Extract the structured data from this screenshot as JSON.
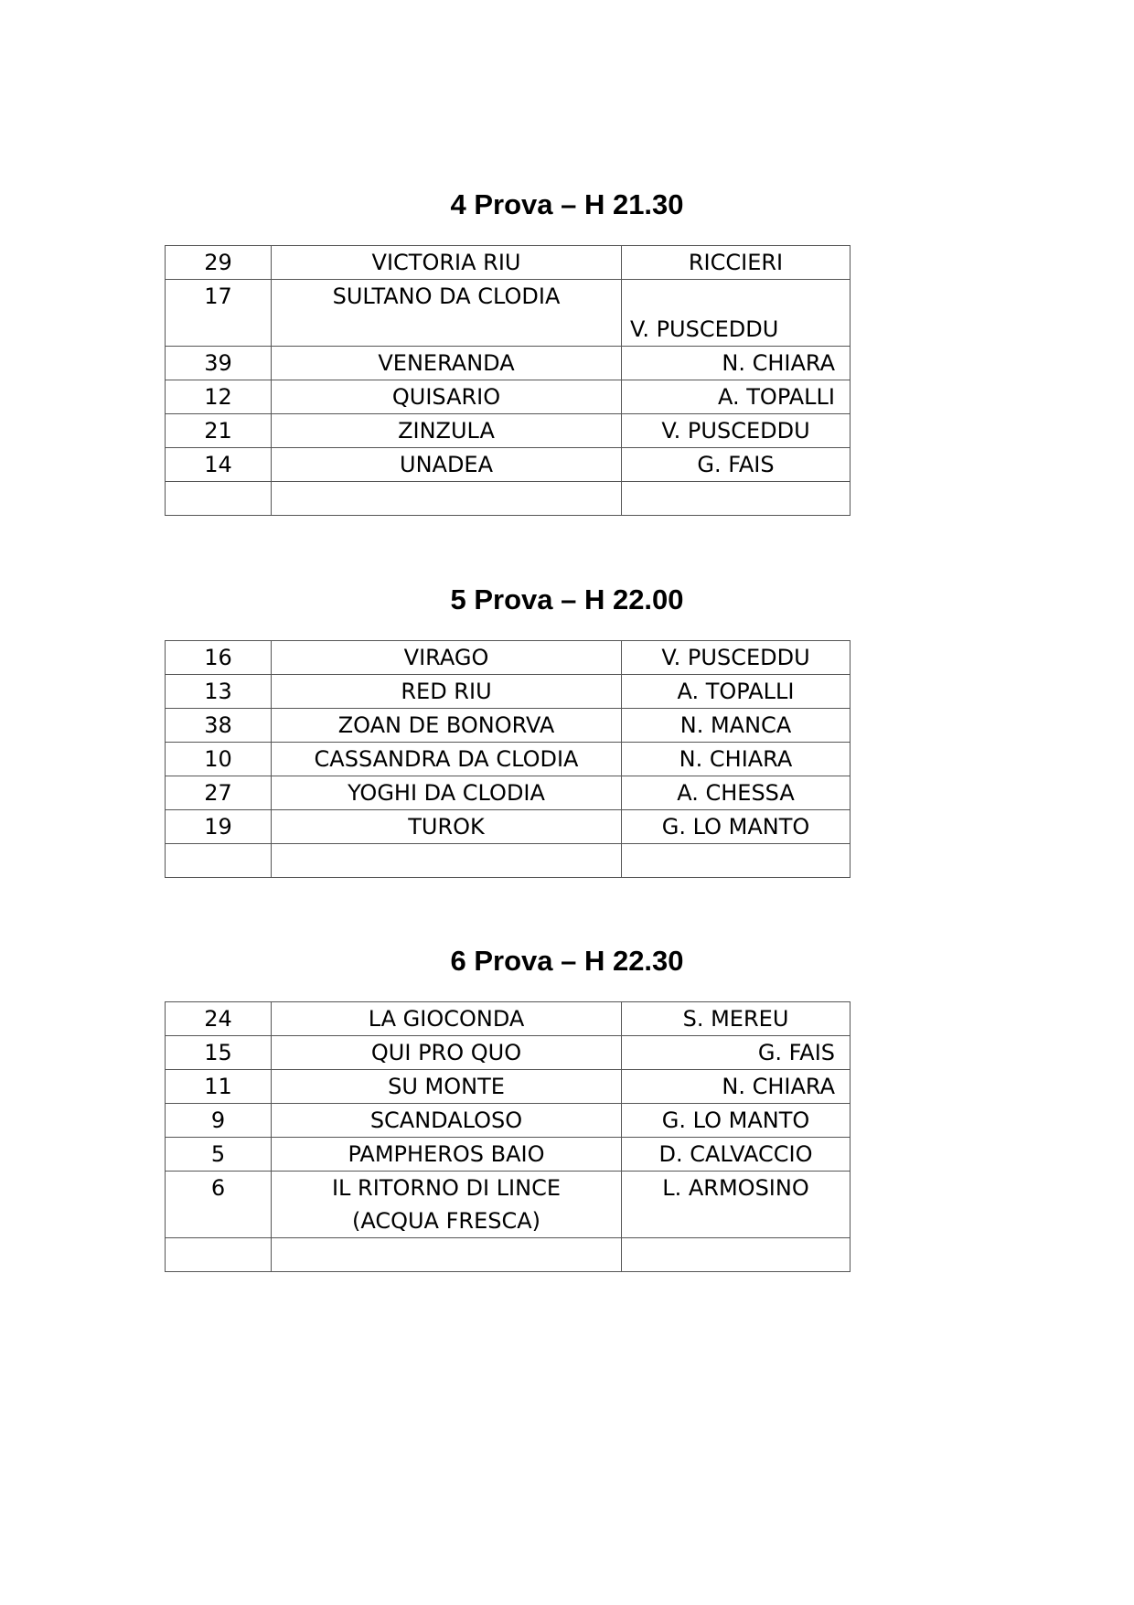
{
  "sections": [
    {
      "title": "4 Prova – H 21.30",
      "rows": [
        {
          "num": "29",
          "horse": "VICTORIA RIU",
          "driver": "RICCIERI"
        },
        {
          "num": "17",
          "horse": "SULTANO DA CLODIA",
          "driver": "V. PUSCEDDU"
        },
        {
          "num": "39",
          "horse": "VENERANDA",
          "driver": "N. CHIARA"
        },
        {
          "num": "12",
          "horse": "QUISARIO",
          "driver": "A. TOPALLI"
        },
        {
          "num": "21",
          "horse": "ZINZULA",
          "driver": "V. PUSCEDDU"
        },
        {
          "num": "14",
          "horse": "UNADEA",
          "driver": "G. FAIS"
        },
        {
          "num": "",
          "horse": "",
          "driver": ""
        }
      ]
    },
    {
      "title": "5 Prova – H 22.00",
      "rows": [
        {
          "num": "16",
          "horse": "VIRAGO",
          "driver": "V. PUSCEDDU"
        },
        {
          "num": "13",
          "horse": "RED RIU",
          "driver": "A. TOPALLI"
        },
        {
          "num": "38",
          "horse": "ZOAN DE BONORVA",
          "driver": "N. MANCA"
        },
        {
          "num": "10",
          "horse": "CASSANDRA DA CLODIA",
          "driver": "N. CHIARA"
        },
        {
          "num": "27",
          "horse": "YOGHI DA CLODIA",
          "driver": "A. CHESSA"
        },
        {
          "num": "19",
          "horse": "TUROK",
          "driver": "G. LO MANTO"
        },
        {
          "num": "",
          "horse": "",
          "driver": ""
        }
      ]
    },
    {
      "title": "6 Prova – H 22.30",
      "rows": [
        {
          "num": "24",
          "horse": "LA GIOCONDA",
          "driver": "S. MEREU"
        },
        {
          "num": "15",
          "horse": "QUI PRO QUO",
          "driver": "G. FAIS"
        },
        {
          "num": "11",
          "horse": "SU MONTE",
          "driver": "N. CHIARA"
        },
        {
          "num": "9",
          "horse": "SCANDALOSO",
          "driver": "G. LO MANTO"
        },
        {
          "num": "5",
          "horse": "PAMPHEROS BAIO",
          "driver": "D. CALVACCIO"
        },
        {
          "num": "6",
          "horse": "IL RITORNO DI LINCE\n(ACQUA FRESCA)",
          "driver": "L. ARMOSINO"
        },
        {
          "num": "",
          "horse": "",
          "driver": ""
        }
      ]
    }
  ]
}
